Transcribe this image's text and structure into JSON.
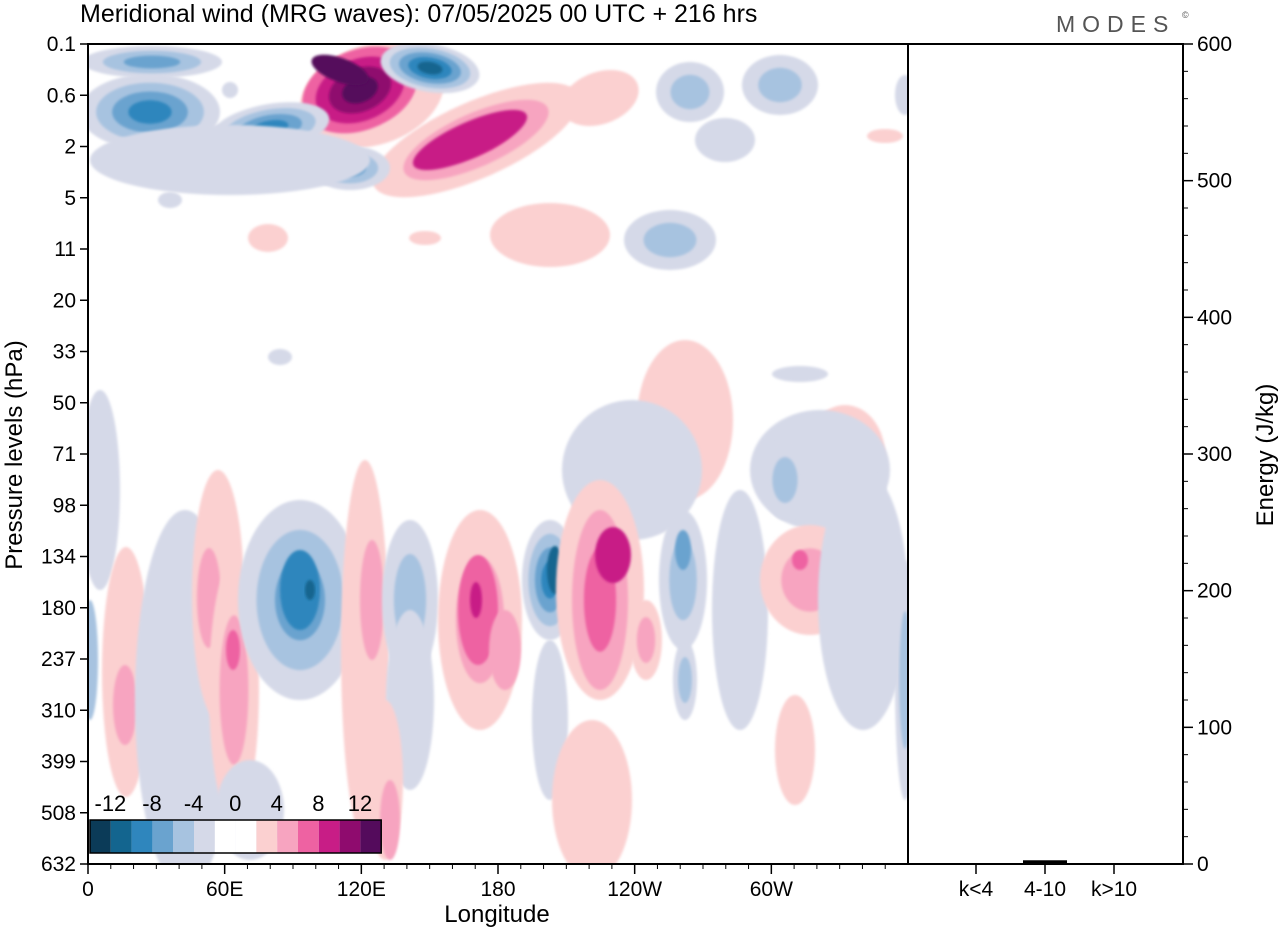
{
  "title": "Meridional wind (MRG waves):  07/05/2025  00 UTC  + 216 hrs",
  "logo": "MODES",
  "logo_mark": "©",
  "chart_data": [
    {
      "type": "heatmap",
      "xlabel": "Longitude",
      "ylabel": "Pressure levels (hPa)",
      "x_ticks": [
        "0",
        "60E",
        "120E",
        "180",
        "120W",
        "60W"
      ],
      "y_ticks": [
        "0.1",
        "0.6",
        "2",
        "5",
        "11",
        "20",
        "33",
        "50",
        "71",
        "98",
        "134",
        "180",
        "237",
        "310",
        "399",
        "508",
        "632"
      ],
      "color_levels": [
        {
          "label": "-12",
          "color": "#0b3b58"
        },
        {
          "label": "",
          "color": "#13658f"
        },
        {
          "label": "-8",
          "color": "#2f86bd"
        },
        {
          "label": "",
          "color": "#6aa3cf"
        },
        {
          "label": "-4",
          "color": "#a7c3e0"
        },
        {
          "label": "",
          "color": "#d5d9e8"
        },
        {
          "label": "0",
          "color": "#ffffff"
        },
        {
          "label": "",
          "color": "#ffffff"
        },
        {
          "label": "4",
          "color": "#fbd0d0"
        },
        {
          "label": "",
          "color": "#f7a4c0"
        },
        {
          "label": "8",
          "color": "#ee62a2"
        },
        {
          "label": "",
          "color": "#c81d86"
        },
        {
          "label": "12",
          "color": "#8f0b6e"
        },
        {
          "label": "",
          "color": "#540b5c"
        }
      ],
      "features": [
        {
          "lon": 115,
          "level": "0.1",
          "value": 14
        },
        {
          "lon": 150,
          "level": "1.2",
          "value": 8
        },
        {
          "lon": 155,
          "level": "0.4",
          "value": -10
        },
        {
          "lon": 40,
          "level": "1",
          "value": -9
        },
        {
          "lon": 200,
          "level": "134",
          "value": -10
        },
        {
          "lon": 225,
          "level": "134",
          "value": 10
        },
        {
          "lon": 170,
          "level": "180",
          "value": 9
        },
        {
          "lon": 98,
          "level": "180",
          "value": -9
        },
        {
          "lon": 315,
          "level": "134",
          "value": 7
        },
        {
          "lon": 330,
          "level": "71",
          "value": 6
        }
      ]
    },
    {
      "type": "bar",
      "ylabel": "Energy (J/kg)",
      "categories": [
        "k<4",
        "4-10",
        "k>10"
      ],
      "values": [
        0,
        2,
        0
      ],
      "ylim": [
        0,
        600
      ],
      "y_ticks": [
        "0",
        "100",
        "200",
        "300",
        "400",
        "500",
        "600"
      ]
    }
  ]
}
